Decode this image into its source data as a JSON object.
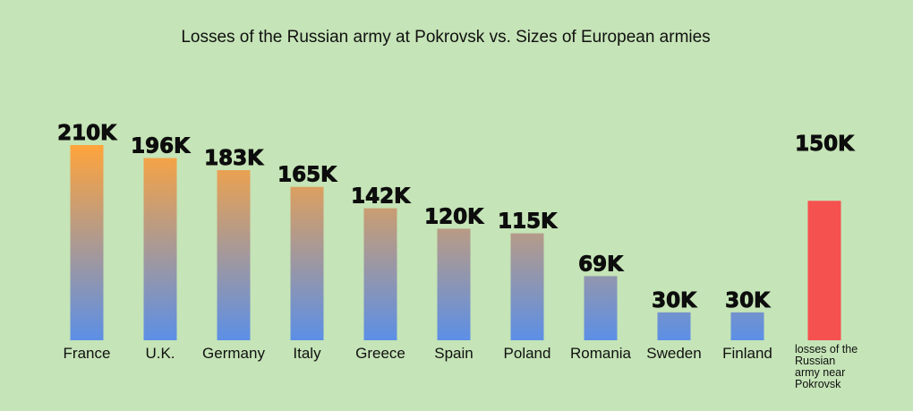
{
  "chart_data": {
    "type": "bar",
    "title": "Losses of the Russian army at Pokrovsk vs. Sizes of European armies",
    "categories": [
      "France",
      "U.K.",
      "Germany",
      "Italy",
      "Greece",
      "Spain",
      "Poland",
      "Romania",
      "Sweden",
      "Finland",
      "losses of the Russian army near Pokrovsk"
    ],
    "values": [
      210,
      196,
      183,
      165,
      142,
      120,
      115,
      69,
      30,
      30,
      150
    ],
    "value_labels": [
      "210K",
      "196K",
      "183K",
      "165K",
      "142K",
      "120K",
      "115K",
      "69K",
      "30K",
      "30K",
      "150K"
    ],
    "xlabel": "",
    "ylabel": "",
    "ylim": [
      0,
      210
    ],
    "grid": false,
    "legend": "none",
    "colors": {
      "gradient_top": "#ffa43b",
      "gradient_bottom": "#5c8fe6",
      "highlight": "#f5514f",
      "background": "#c5e4b7"
    }
  }
}
